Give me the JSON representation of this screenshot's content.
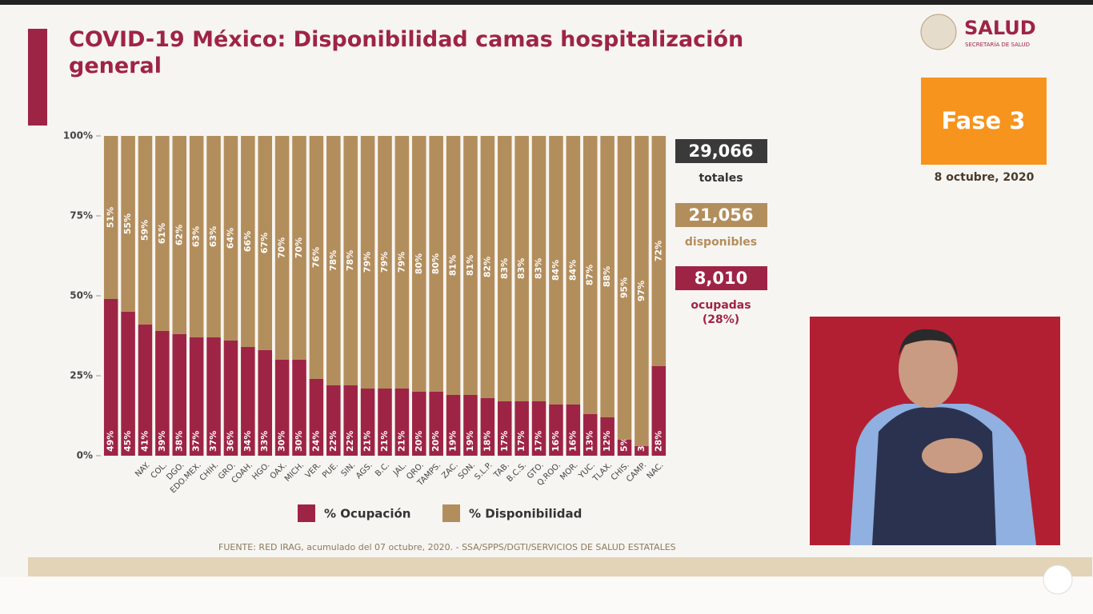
{
  "chart_data": {
    "type": "stacked-bar",
    "title": "COVID-19 México: Disponibilidad camas hospitalización general",
    "categories": [
      null,
      null,
      "NAY.",
      "COL.",
      "DGO.",
      "EDO.MEX.",
      "CHIH.",
      "GRO.",
      "COAH.",
      "HGO.",
      "OAX.",
      "MICH.",
      "VER.",
      "PUE.",
      "SIN.",
      "AGS.",
      "B.C.",
      "JAL.",
      "QRO.",
      "TAMPS.",
      "ZAC.",
      "SON.",
      "S.L.P.",
      "TAB.",
      "B.C.S.",
      "GTO.",
      "Q.ROO.",
      "MOR.",
      "YUC.",
      "TLAX.",
      "CHIS.",
      "CAMP.",
      "NAC."
    ],
    "series": [
      {
        "name": "% Ocupación",
        "color": "#9e2446",
        "values": [
          49,
          45,
          41,
          39,
          38,
          37,
          37,
          36,
          34,
          33,
          30,
          30,
          24,
          22,
          22,
          21,
          21,
          21,
          20,
          20,
          19,
          19,
          18,
          17,
          17,
          17,
          16,
          16,
          13,
          12,
          5,
          3,
          28
        ],
        "value_labels": [
          "49%",
          "45%",
          "41%",
          "39%",
          "38%",
          "37%",
          "37%",
          "36%",
          "34%",
          "33%",
          "30%",
          "30%",
          "24%",
          "22%",
          "22%",
          "21%",
          "21%",
          "21%",
          "20%",
          "20%",
          "19%",
          "19%",
          "18%",
          "17%",
          "17%",
          "17%",
          "16%",
          "16%",
          "13%",
          "12%",
          "5%",
          "3%",
          "28%"
        ]
      },
      {
        "name": "% Disponibilidad",
        "color": "#b38e5d",
        "values": [
          51,
          55,
          59,
          61,
          62,
          63,
          63,
          64,
          66,
          67,
          70,
          70,
          76,
          78,
          78,
          79,
          79,
          79,
          80,
          80,
          81,
          81,
          82,
          83,
          83,
          83,
          84,
          84,
          87,
          88,
          95,
          97,
          72
        ],
        "value_labels": [
          "51%",
          "55%",
          "59%",
          "61%",
          "62%",
          "63%",
          "63%",
          "64%",
          "66%",
          "67%",
          "70%",
          "70%",
          "76%",
          "78%",
          "78%",
          "79%",
          "79%",
          "79%",
          "80%",
          "80%",
          "81%",
          "81%",
          "82%",
          "83%",
          "83%",
          "83%",
          "84%",
          "84%",
          "87%",
          "88%",
          "95%",
          "97%",
          "72%"
        ]
      }
    ],
    "ylim": [
      0,
      100
    ],
    "yticks": [
      {
        "value": 0,
        "label": "0%"
      },
      {
        "value": 25,
        "label": "25%"
      },
      {
        "value": 50,
        "label": "50%"
      },
      {
        "value": 75,
        "label": "75%"
      },
      {
        "value": 100,
        "label": "100%"
      }
    ],
    "grid": false,
    "source": "FUENTE: RED IRAG, acumulado del 07 octubre, 2020. -  SSA/SPPS/DGTI/SERVICIOS DE SALUD ESTATALES"
  },
  "stats": [
    {
      "value": "29,066",
      "label": "totales",
      "color": "#3a3a3a"
    },
    {
      "value": "21,056",
      "label": "disponibles",
      "color": "#b38e5d"
    },
    {
      "value": "8,010",
      "label": "ocupadas",
      "note": "(28%)",
      "color": "#9e2446"
    }
  ],
  "header": {
    "logo": "SALUD",
    "logo_sub": "SECRETARÍA DE SALUD",
    "phase": "Fase 3",
    "date": "8 octubre, 2020"
  }
}
